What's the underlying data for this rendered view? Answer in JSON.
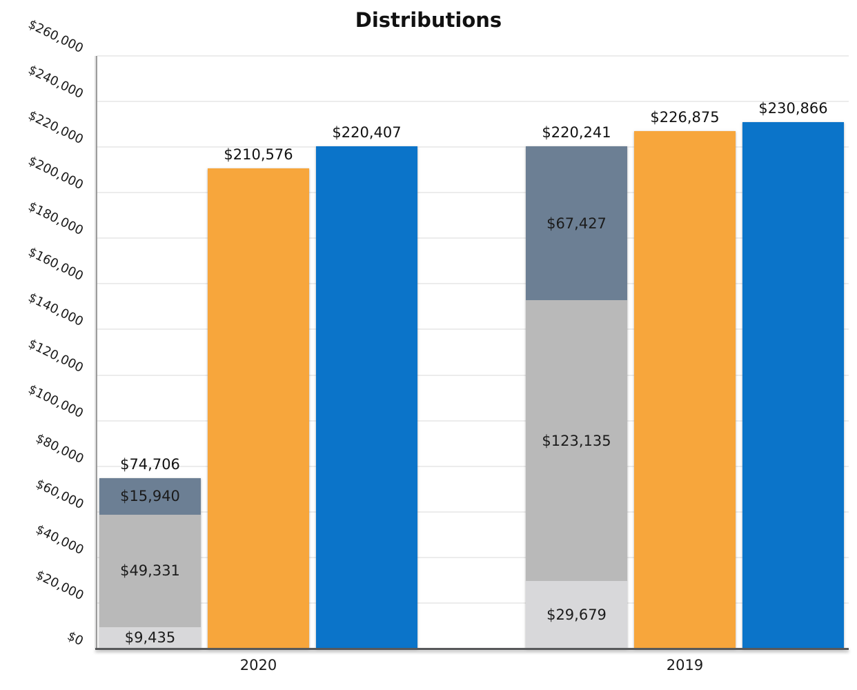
{
  "title": "Distributions",
  "chart_data": {
    "type": "bar",
    "title": "Distributions",
    "xlabel": "",
    "ylabel": "",
    "ylim": [
      0,
      260000
    ],
    "ytick_step": 20000,
    "ytick_labels": [
      "$0",
      "$20,000",
      "$40,000",
      "$60,000",
      "$80,000",
      "$100,000",
      "$120,000",
      "$140,000",
      "$160,000",
      "$180,000",
      "$200,000",
      "$220,000",
      "$240,000",
      "$260,000"
    ],
    "grid": true,
    "legend": false,
    "categories": [
      "2020",
      "2019"
    ],
    "colors": {
      "orange": "#F7A63C",
      "blue": "#0B74C9",
      "slate": "#6C7F94",
      "gray": "#B9B9B9",
      "light_gray": "#D8D8DA",
      "gridline": "#ECECEC",
      "axis": "#57585A"
    },
    "groups": [
      {
        "category": "2020",
        "bars": [
          {
            "name": "stacked",
            "kind": "stacked",
            "total": 74706,
            "total_label": "$74,706",
            "segments": [
              {
                "value": 9435,
                "label": "$9,435",
                "color": "#D8D8DA"
              },
              {
                "value": 49331,
                "label": "$49,331",
                "color": "#B9B9B9"
              },
              {
                "value": 15940,
                "label": "$15,940",
                "color": "#6C7F94"
              }
            ]
          },
          {
            "name": "orange",
            "kind": "solid",
            "value": 210576,
            "label": "$210,576",
            "color": "#F7A63C"
          },
          {
            "name": "blue",
            "kind": "solid",
            "value": 220407,
            "label": "$220,407",
            "color": "#0B74C9"
          }
        ]
      },
      {
        "category": "2019",
        "bars": [
          {
            "name": "stacked",
            "kind": "stacked",
            "total": 220241,
            "total_label": "$220,241",
            "segments": [
              {
                "value": 29679,
                "label": "$29,679",
                "color": "#D8D8DA"
              },
              {
                "value": 123135,
                "label": "$123,135",
                "color": "#B9B9B9"
              },
              {
                "value": 67427,
                "label": "$67,427",
                "color": "#6C7F94"
              }
            ]
          },
          {
            "name": "orange",
            "kind": "solid",
            "value": 226875,
            "label": "$226,875",
            "color": "#F7A63C"
          },
          {
            "name": "blue",
            "kind": "solid",
            "value": 230866,
            "label": "$230,866",
            "color": "#0B74C9"
          }
        ]
      }
    ]
  }
}
